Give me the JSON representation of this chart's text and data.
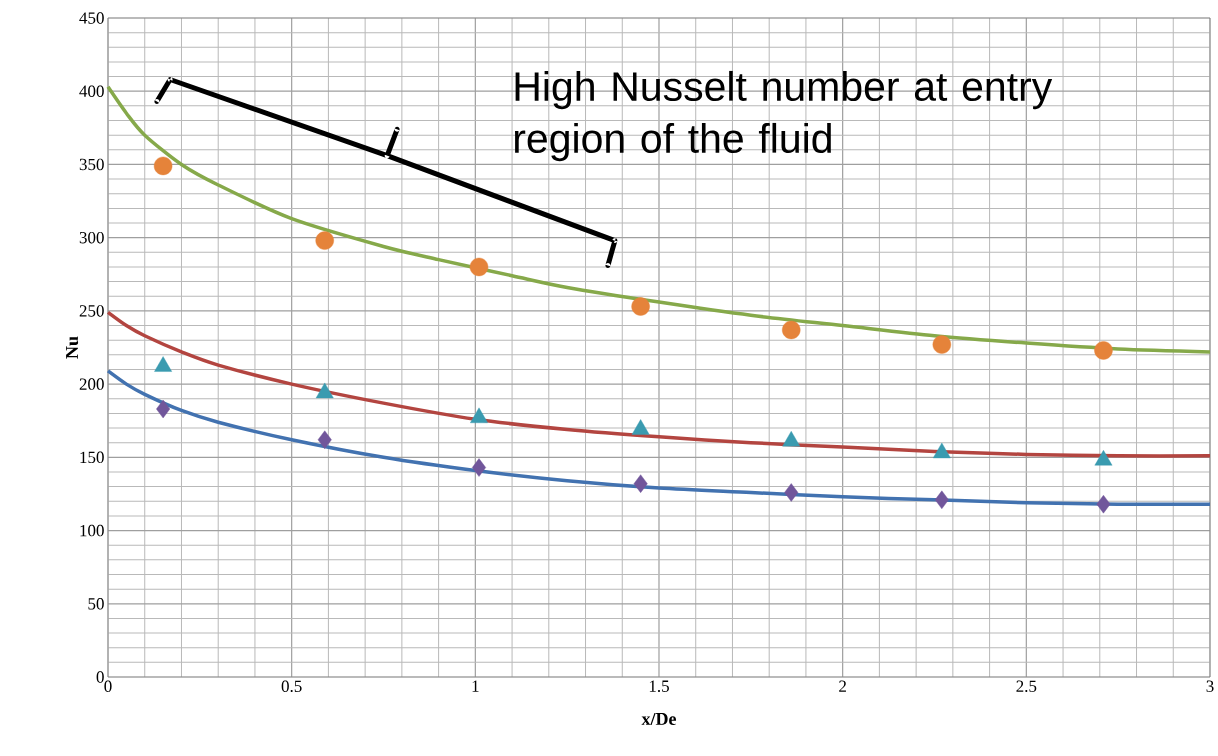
{
  "chart_data": {
    "type": "scatter",
    "xlabel": "x/De",
    "ylabel": "Nu",
    "xlim": [
      0,
      3
    ],
    "ylim": [
      0,
      450
    ],
    "xticks": [
      0,
      0.5,
      1,
      1.5,
      2,
      2.5,
      3
    ],
    "yticks": [
      0,
      50,
      100,
      150,
      200,
      250,
      300,
      350,
      400,
      450
    ],
    "grid": true,
    "annotations": [
      "High Nusselt number at entry region of the fluid"
    ],
    "series": [
      {
        "type": "line",
        "color": "#86a94a",
        "marker": "none",
        "x": [
          0,
          0.05,
          0.1,
          0.2,
          0.3,
          0.5,
          0.75,
          0.9,
          1.1,
          1.25,
          1.5,
          1.75,
          2.0,
          2.25,
          2.5,
          2.75,
          3.0
        ],
        "values": [
          403,
          385,
          370,
          350,
          336,
          313,
          294,
          285,
          274,
          266,
          256,
          247,
          240,
          233,
          228,
          224,
          222
        ]
      },
      {
        "type": "line",
        "color": "#b34540",
        "marker": "none",
        "x": [
          0,
          0.05,
          0.1,
          0.2,
          0.3,
          0.5,
          0.75,
          1.0,
          1.25,
          1.5,
          1.75,
          2.0,
          2.25,
          2.5,
          2.75,
          3.0
        ],
        "values": [
          249,
          240,
          233,
          222,
          213,
          200,
          187,
          176,
          169,
          164,
          160,
          157,
          154,
          152,
          151,
          151
        ]
      },
      {
        "type": "line",
        "color": "#4272b0",
        "marker": "none",
        "x": [
          0,
          0.05,
          0.1,
          0.2,
          0.3,
          0.5,
          0.75,
          1.0,
          1.25,
          1.5,
          1.75,
          2.0,
          2.25,
          2.5,
          2.75,
          3.0
        ],
        "values": [
          209,
          200,
          193,
          182,
          174,
          162,
          150,
          141,
          134,
          129,
          126,
          123,
          121,
          119,
          118,
          118
        ]
      },
      {
        "color": "#e5833a",
        "marker": "circle",
        "x": [
          0.15,
          0.59,
          1.01,
          1.45,
          1.86,
          2.27,
          2.71
        ],
        "values": [
          349,
          298,
          280,
          253,
          237,
          227,
          223
        ]
      },
      {
        "color": "#3a9bb0",
        "marker": "triangle",
        "x": [
          0.15,
          0.59,
          1.01,
          1.45,
          1.86,
          2.27,
          2.71
        ],
        "values": [
          212,
          194,
          177,
          169,
          161,
          153,
          148
        ]
      },
      {
        "color": "#71569b",
        "marker": "diamond",
        "x": [
          0.15,
          0.59,
          1.01,
          1.45,
          1.86,
          2.27,
          2.71
        ],
        "values": [
          183,
          162,
          143,
          132,
          126,
          121,
          118
        ]
      }
    ]
  }
}
